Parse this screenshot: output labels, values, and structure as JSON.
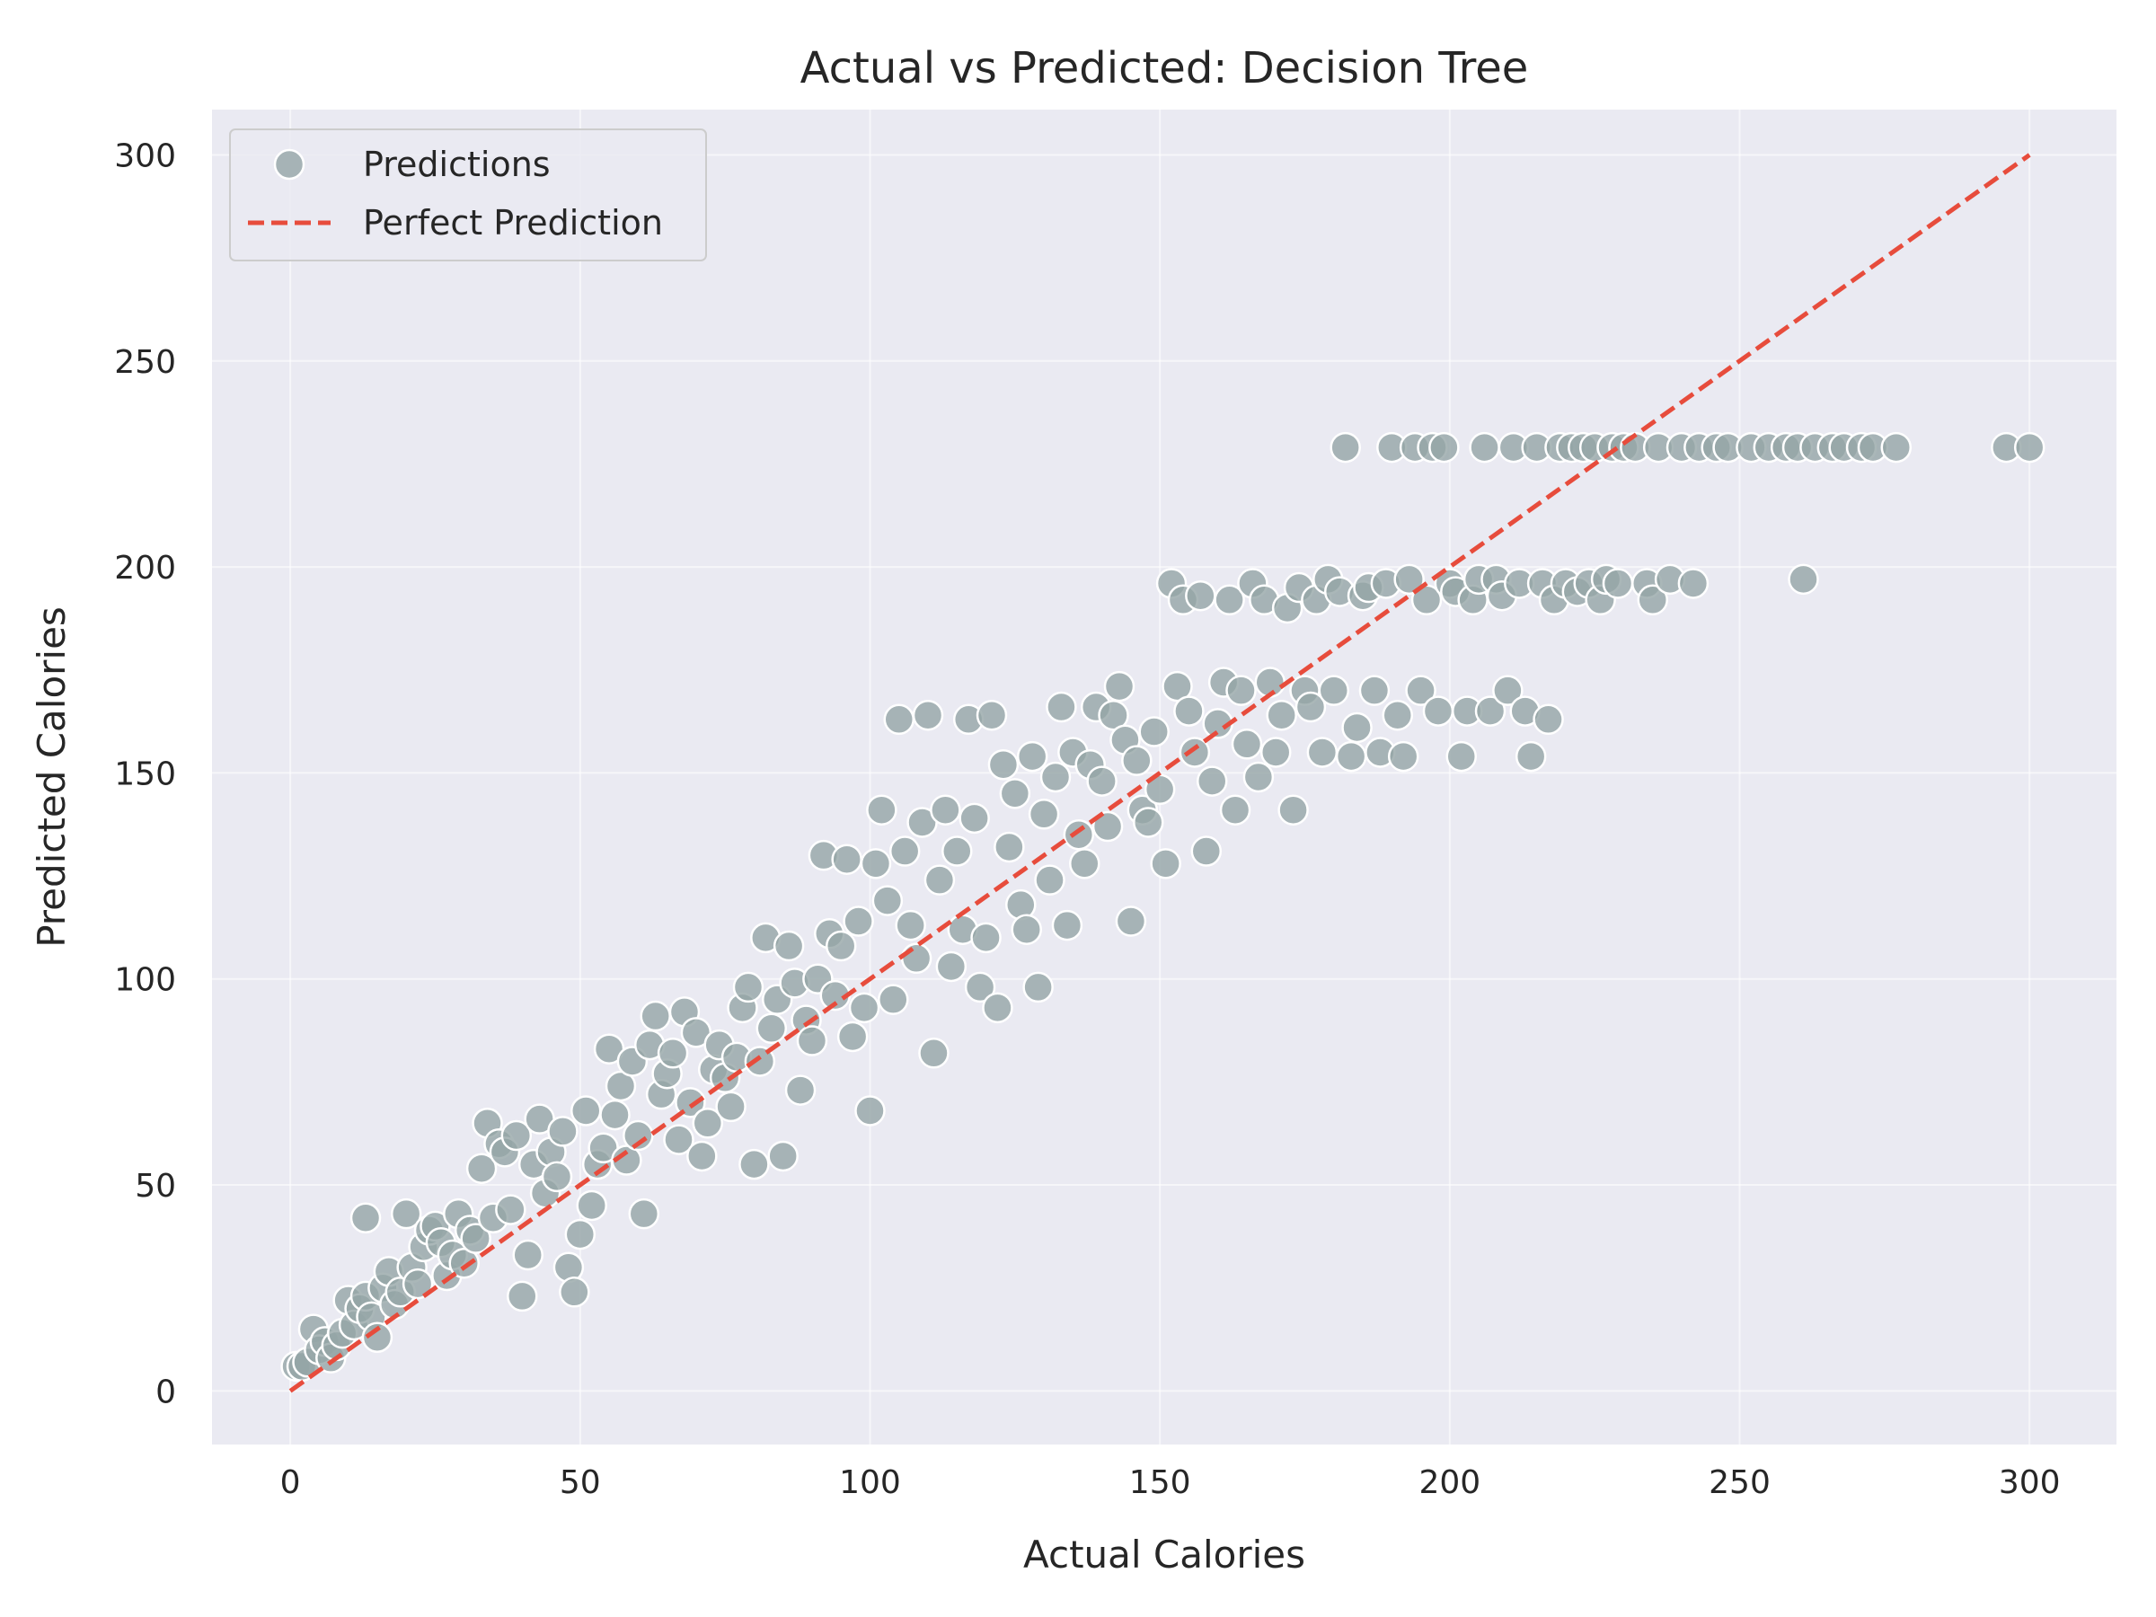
{
  "colors": {
    "background": "#eaeaf2",
    "grid": "#ffffff",
    "points": "#95a5a6",
    "point_edge": "#ffffff",
    "perfect_line": "#e74c3c"
  },
  "chart_data": {
    "type": "scatter",
    "title": "Actual vs Predicted: Decision Tree",
    "xlabel": "Actual Calories",
    "ylabel": "Predicted Calories",
    "xlim": [
      -13.5,
      315
    ],
    "ylim": [
      -13,
      311
    ],
    "xticks": [
      0,
      50,
      100,
      150,
      200,
      250,
      300
    ],
    "yticks": [
      0,
      50,
      100,
      150,
      200,
      250,
      300
    ],
    "grid": true,
    "legend": {
      "placement": "upper-left",
      "entries": [
        {
          "label": "Predictions",
          "marker": "circle"
        },
        {
          "label": "Perfect Prediction",
          "marker": "dashed-line"
        }
      ]
    },
    "series": [
      {
        "name": "Predictions",
        "marker": "circle",
        "points": [
          [
            1,
            6
          ],
          [
            2,
            6
          ],
          [
            3,
            7
          ],
          [
            4,
            15
          ],
          [
            5,
            10
          ],
          [
            6,
            12
          ],
          [
            7,
            8
          ],
          [
            8,
            11
          ],
          [
            9,
            14
          ],
          [
            10,
            22
          ],
          [
            11,
            16
          ],
          [
            12,
            20
          ],
          [
            13,
            42
          ],
          [
            13,
            23
          ],
          [
            14,
            18
          ],
          [
            15,
            13
          ],
          [
            16,
            25
          ],
          [
            17,
            29
          ],
          [
            18,
            21
          ],
          [
            19,
            24
          ],
          [
            20,
            43
          ],
          [
            21,
            30
          ],
          [
            22,
            26
          ],
          [
            23,
            35
          ],
          [
            24,
            39
          ],
          [
            25,
            40
          ],
          [
            26,
            36
          ],
          [
            27,
            28
          ],
          [
            28,
            33
          ],
          [
            29,
            43
          ],
          [
            30,
            31
          ],
          [
            31,
            39
          ],
          [
            32,
            37
          ],
          [
            33,
            54
          ],
          [
            34,
            65
          ],
          [
            35,
            42
          ],
          [
            36,
            60
          ],
          [
            37,
            58
          ],
          [
            38,
            44
          ],
          [
            39,
            62
          ],
          [
            40,
            23
          ],
          [
            41,
            33
          ],
          [
            42,
            55
          ],
          [
            43,
            66
          ],
          [
            44,
            48
          ],
          [
            45,
            58
          ],
          [
            46,
            52
          ],
          [
            47,
            63
          ],
          [
            48,
            30
          ],
          [
            49,
            24
          ],
          [
            50,
            38
          ],
          [
            51,
            68
          ],
          [
            52,
            45
          ],
          [
            53,
            55
          ],
          [
            54,
            59
          ],
          [
            55,
            83
          ],
          [
            56,
            67
          ],
          [
            57,
            74
          ],
          [
            58,
            56
          ],
          [
            59,
            80
          ],
          [
            60,
            62
          ],
          [
            61,
            43
          ],
          [
            62,
            84
          ],
          [
            63,
            91
          ],
          [
            64,
            72
          ],
          [
            65,
            77
          ],
          [
            66,
            82
          ],
          [
            67,
            61
          ],
          [
            68,
            92
          ],
          [
            69,
            70
          ],
          [
            70,
            87
          ],
          [
            71,
            57
          ],
          [
            72,
            65
          ],
          [
            73,
            78
          ],
          [
            74,
            84
          ],
          [
            75,
            76
          ],
          [
            76,
            69
          ],
          [
            77,
            81
          ],
          [
            78,
            93
          ],
          [
            79,
            98
          ],
          [
            80,
            55
          ],
          [
            81,
            80
          ],
          [
            82,
            110
          ],
          [
            83,
            88
          ],
          [
            84,
            95
          ],
          [
            85,
            57
          ],
          [
            86,
            108
          ],
          [
            87,
            99
          ],
          [
            88,
            73
          ],
          [
            89,
            90
          ],
          [
            90,
            85
          ],
          [
            91,
            100
          ],
          [
            92,
            130
          ],
          [
            93,
            111
          ],
          [
            94,
            96
          ],
          [
            95,
            108
          ],
          [
            96,
            129
          ],
          [
            97,
            86
          ],
          [
            98,
            114
          ],
          [
            99,
            93
          ],
          [
            100,
            68
          ],
          [
            101,
            128
          ],
          [
            102,
            141
          ],
          [
            103,
            119
          ],
          [
            104,
            95
          ],
          [
            105,
            163
          ],
          [
            106,
            131
          ],
          [
            107,
            113
          ],
          [
            108,
            105
          ],
          [
            109,
            138
          ],
          [
            110,
            164
          ],
          [
            111,
            82
          ],
          [
            112,
            124
          ],
          [
            113,
            141
          ],
          [
            114,
            103
          ],
          [
            115,
            131
          ],
          [
            116,
            112
          ],
          [
            117,
            163
          ],
          [
            118,
            139
          ],
          [
            119,
            98
          ],
          [
            120,
            110
          ],
          [
            121,
            164
          ],
          [
            122,
            93
          ],
          [
            123,
            152
          ],
          [
            124,
            132
          ],
          [
            125,
            145
          ],
          [
            126,
            118
          ],
          [
            127,
            112
          ],
          [
            128,
            154
          ],
          [
            129,
            98
          ],
          [
            130,
            140
          ],
          [
            131,
            124
          ],
          [
            132,
            149
          ],
          [
            133,
            166
          ],
          [
            134,
            113
          ],
          [
            135,
            155
          ],
          [
            136,
            135
          ],
          [
            137,
            128
          ],
          [
            138,
            152
          ],
          [
            139,
            166
          ],
          [
            140,
            148
          ],
          [
            141,
            137
          ],
          [
            142,
            164
          ],
          [
            143,
            171
          ],
          [
            144,
            158
          ],
          [
            145,
            114
          ],
          [
            146,
            153
          ],
          [
            147,
            141
          ],
          [
            148,
            138
          ],
          [
            149,
            160
          ],
          [
            150,
            146
          ],
          [
            151,
            128
          ],
          [
            152,
            196
          ],
          [
            153,
            171
          ],
          [
            154,
            192
          ],
          [
            155,
            165
          ],
          [
            156,
            155
          ],
          [
            157,
            193
          ],
          [
            158,
            131
          ],
          [
            159,
            148
          ],
          [
            160,
            162
          ],
          [
            161,
            172
          ],
          [
            162,
            192
          ],
          [
            163,
            141
          ],
          [
            164,
            170
          ],
          [
            165,
            157
          ],
          [
            166,
            196
          ],
          [
            167,
            149
          ],
          [
            168,
            192
          ],
          [
            169,
            172
          ],
          [
            170,
            155
          ],
          [
            171,
            164
          ],
          [
            172,
            190
          ],
          [
            173,
            141
          ],
          [
            174,
            195
          ],
          [
            175,
            170
          ],
          [
            176,
            166
          ],
          [
            177,
            192
          ],
          [
            178,
            155
          ],
          [
            179,
            197
          ],
          [
            180,
            170
          ],
          [
            181,
            194
          ],
          [
            182,
            229
          ],
          [
            183,
            154
          ],
          [
            184,
            161
          ],
          [
            185,
            193
          ],
          [
            186,
            195
          ],
          [
            187,
            170
          ],
          [
            188,
            155
          ],
          [
            189,
            196
          ],
          [
            190,
            229
          ],
          [
            191,
            164
          ],
          [
            192,
            154
          ],
          [
            193,
            197
          ],
          [
            194,
            229
          ],
          [
            195,
            170
          ],
          [
            196,
            192
          ],
          [
            197,
            229
          ],
          [
            198,
            165
          ],
          [
            199,
            229
          ],
          [
            200,
            196
          ],
          [
            201,
            194
          ],
          [
            202,
            154
          ],
          [
            203,
            165
          ],
          [
            204,
            192
          ],
          [
            205,
            197
          ],
          [
            206,
            229
          ],
          [
            207,
            165
          ],
          [
            208,
            197
          ],
          [
            209,
            193
          ],
          [
            210,
            170
          ],
          [
            211,
            229
          ],
          [
            212,
            196
          ],
          [
            213,
            165
          ],
          [
            214,
            154
          ],
          [
            215,
            229
          ],
          [
            216,
            196
          ],
          [
            217,
            163
          ],
          [
            218,
            192
          ],
          [
            219,
            229
          ],
          [
            220,
            196
          ],
          [
            221,
            229
          ],
          [
            222,
            194
          ],
          [
            223,
            229
          ],
          [
            224,
            196
          ],
          [
            225,
            229
          ],
          [
            226,
            192
          ],
          [
            227,
            197
          ],
          [
            228,
            229
          ],
          [
            229,
            196
          ],
          [
            230,
            229
          ],
          [
            232,
            229
          ],
          [
            234,
            196
          ],
          [
            235,
            192
          ],
          [
            236,
            229
          ],
          [
            238,
            197
          ],
          [
            240,
            229
          ],
          [
            242,
            196
          ],
          [
            243,
            229
          ],
          [
            246,
            229
          ],
          [
            248,
            229
          ],
          [
            252,
            229
          ],
          [
            255,
            229
          ],
          [
            258,
            229
          ],
          [
            260,
            229
          ],
          [
            261,
            197
          ],
          [
            263,
            229
          ],
          [
            266,
            229
          ],
          [
            268,
            229
          ],
          [
            271,
            229
          ],
          [
            273,
            229
          ],
          [
            277,
            229
          ],
          [
            296,
            229
          ],
          [
            300,
            229
          ]
        ]
      },
      {
        "name": "Perfect Prediction",
        "marker": "dashed-line",
        "x": [
          0,
          300
        ],
        "y": [
          0,
          300
        ]
      }
    ]
  }
}
